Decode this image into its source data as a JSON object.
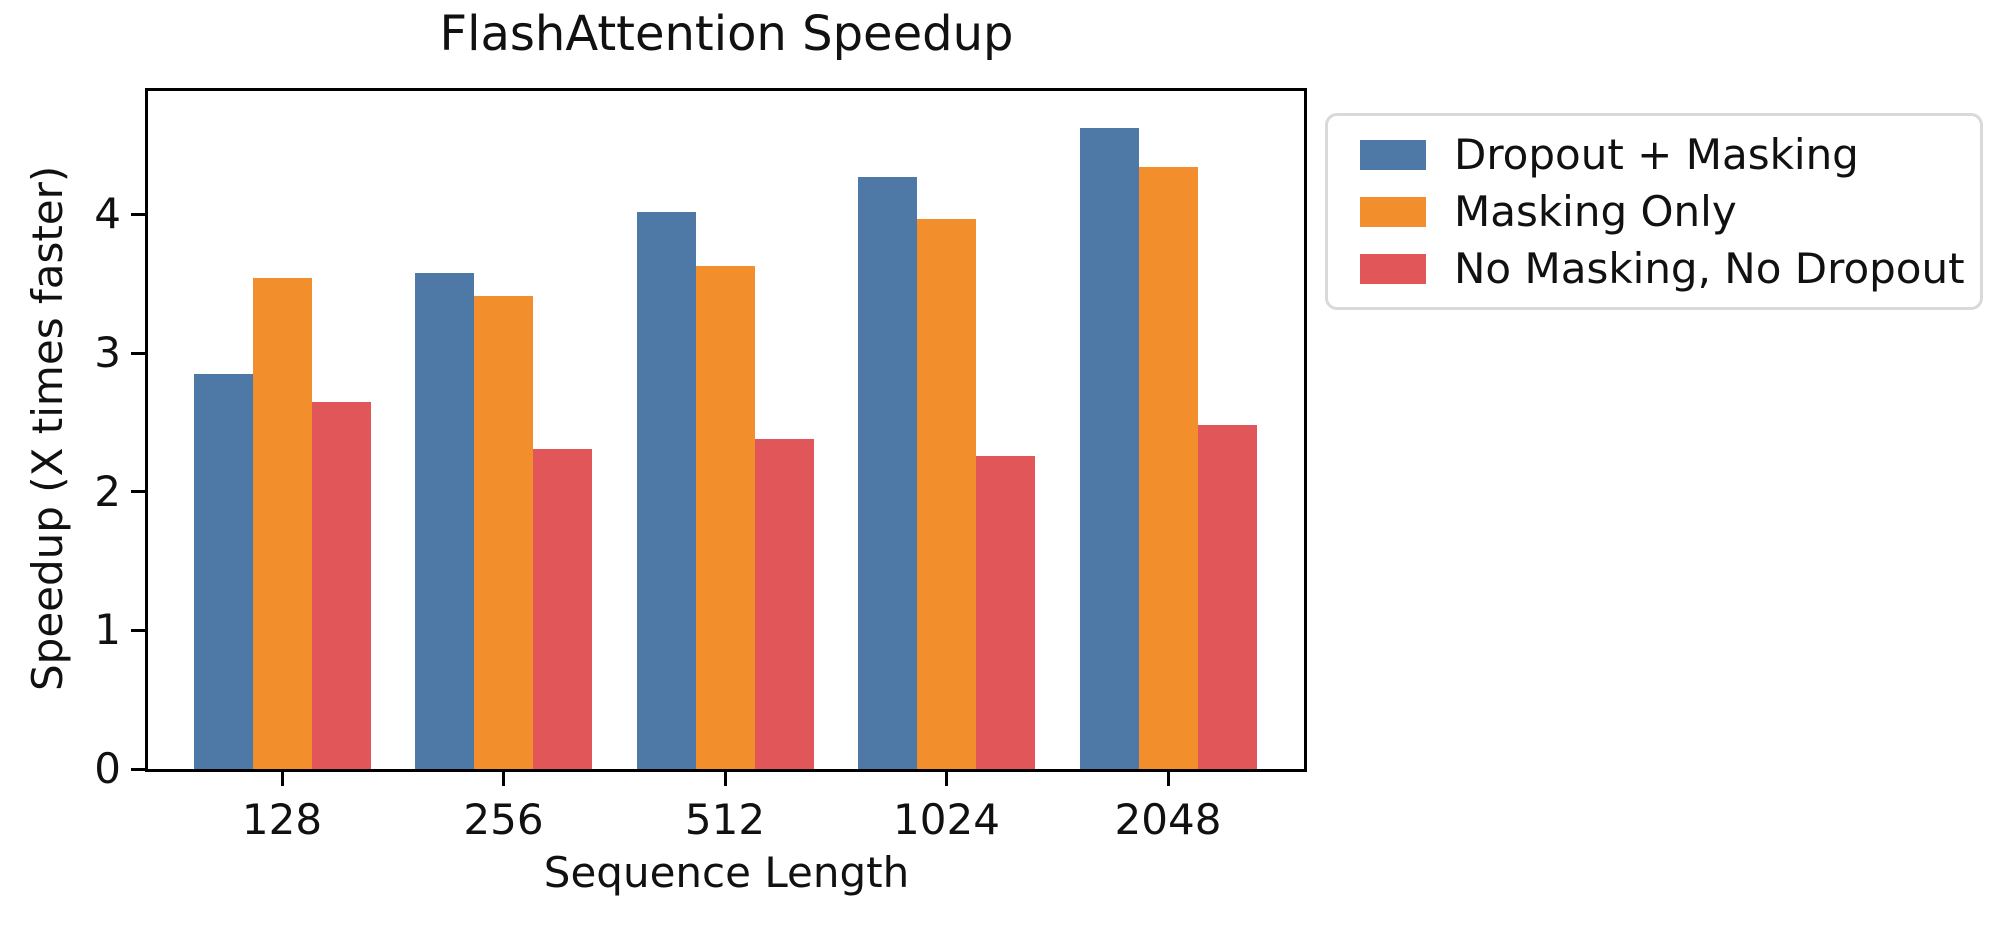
{
  "figure": {
    "background_color": "#ffffff",
    "text_color": "#111111",
    "spine_color": "#000000",
    "legend_border_color": "#d9d9d9"
  },
  "chart_data": {
    "type": "bar",
    "title": "FlashAttention Speedup",
    "xlabel": "Sequence Length",
    "ylabel": "Speedup (X times faster)",
    "categories": [
      "128",
      "256",
      "512",
      "1024",
      "2048"
    ],
    "series": [
      {
        "name": "Dropout + Masking",
        "color": "#4e79a7",
        "values": [
          2.85,
          3.58,
          4.02,
          4.27,
          4.62
        ]
      },
      {
        "name": "Masking Only",
        "color": "#f28e2b",
        "values": [
          3.54,
          3.41,
          3.63,
          3.97,
          4.34
        ]
      },
      {
        "name": "No Masking, No Dropout",
        "color": "#e15759",
        "values": [
          2.65,
          2.31,
          2.38,
          2.26,
          2.48
        ]
      }
    ],
    "yticks": [
      0,
      1,
      2,
      3,
      4
    ],
    "ylim": [
      0,
      4.89
    ],
    "grid": false,
    "legend_position": "outside-upper-right"
  }
}
